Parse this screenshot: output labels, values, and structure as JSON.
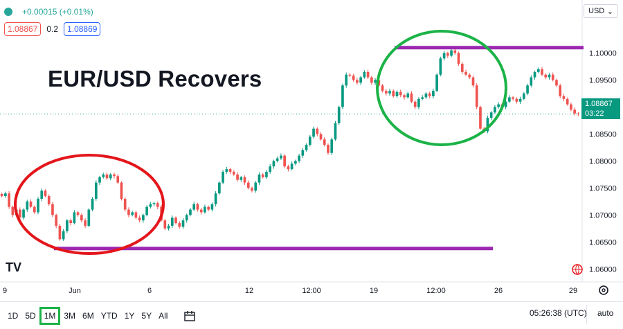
{
  "header": {
    "change": "+0.00015 (+0.01%)",
    "bid": "1.08867",
    "spread": "0.2",
    "ask": "1.08869",
    "currency": "USD",
    "up_color": "#089981",
    "down_color": "#ef5350"
  },
  "title": "EUR/USD Recovers",
  "current_price": {
    "value": "1.08867",
    "countdown": "03:22"
  },
  "toolbar": {
    "timeframes": [
      "1D",
      "5D",
      "1M",
      "3M",
      "6M",
      "YTD",
      "1Y",
      "5Y",
      "All"
    ],
    "active_timeframe": "1M",
    "calendar_icon": "calendar-icon",
    "clock": "05:26:38 (UTC)",
    "scale_mode": "auto",
    "logo": "TV"
  },
  "chart_data": {
    "type": "line",
    "title": "EUR/USD Recovers",
    "y_axis_ticks": [
      "1.10000",
      "1.09500",
      "1.09000",
      "1.08500",
      "1.08000",
      "1.07500",
      "1.07000",
      "1.06500",
      "1.06000"
    ],
    "x_axis_ticks": [
      "9",
      "Jun",
      "6",
      "12",
      "12:00",
      "19",
      "12:00",
      "26",
      "29"
    ],
    "ylim": [
      1.0585,
      1.1088
    ],
    "series": [
      {
        "values": [
          1.0735,
          1.074,
          1.0715,
          1.07,
          1.071,
          1.0695,
          1.071,
          1.0725,
          1.0715,
          1.0705,
          1.073,
          1.0745,
          1.0735,
          1.072,
          1.07,
          1.068,
          1.0655,
          1.067,
          1.069,
          1.0685,
          1.0705,
          1.07,
          1.069,
          1.068,
          1.071,
          1.073,
          1.076,
          1.077,
          1.0775,
          1.0768,
          1.0775,
          1.0772,
          1.076,
          1.073,
          1.071,
          1.07,
          1.0705,
          1.0695,
          1.069,
          1.07,
          1.0715,
          1.072,
          1.0722,
          1.0715,
          1.069,
          1.0675,
          1.068,
          1.0695,
          1.0685,
          1.0678,
          1.069,
          1.07,
          1.071,
          1.072,
          1.071,
          1.0705,
          1.0715,
          1.071,
          1.072,
          1.074,
          1.076,
          1.078,
          1.0785,
          1.078,
          1.0775,
          1.0765,
          1.077,
          1.076,
          1.075,
          1.0745,
          1.076,
          1.0775,
          1.077,
          1.078,
          1.079,
          1.08,
          1.0805,
          1.081,
          1.079,
          1.0785,
          1.0795,
          1.08,
          1.081,
          1.082,
          1.083,
          1.0845,
          1.086,
          1.085,
          1.084,
          1.083,
          1.0815,
          1.084,
          1.087,
          1.09,
          1.094,
          1.096,
          1.0958,
          1.095,
          1.0945,
          1.0955,
          1.0965,
          1.0955,
          1.0945,
          1.095,
          1.094,
          1.093,
          1.0925,
          1.093,
          1.092,
          1.0928,
          1.0922,
          1.0918,
          1.0925,
          1.091,
          1.09,
          1.0915,
          1.0918,
          1.0925,
          1.092,
          1.093,
          1.096,
          1.099,
          1.1,
          1.0995,
          1.1005,
          1.1,
          1.098,
          1.0965,
          1.096,
          1.0955,
          1.094,
          1.09,
          1.086,
          1.0855,
          1.088,
          1.089,
          1.09,
          1.0905,
          1.09,
          1.091,
          1.0918,
          1.0915,
          1.091,
          1.0915,
          1.0925,
          1.094,
          1.0955,
          1.0965,
          1.097,
          1.096,
          1.0955,
          1.096,
          1.095,
          1.094,
          1.092,
          1.0915,
          1.0905,
          1.0895,
          1.0888,
          1.0887
        ]
      }
    ],
    "hlines": [
      {
        "y": 1.101,
        "color": "#9c27b0"
      },
      {
        "y": 1.0638,
        "color": "#9c27b0"
      }
    ],
    "annotations": [
      {
        "shape": "ellipse",
        "color": "#e3161b"
      },
      {
        "shape": "ellipse",
        "color": "#1bb347"
      }
    ],
    "grid": false,
    "legend": "none"
  }
}
